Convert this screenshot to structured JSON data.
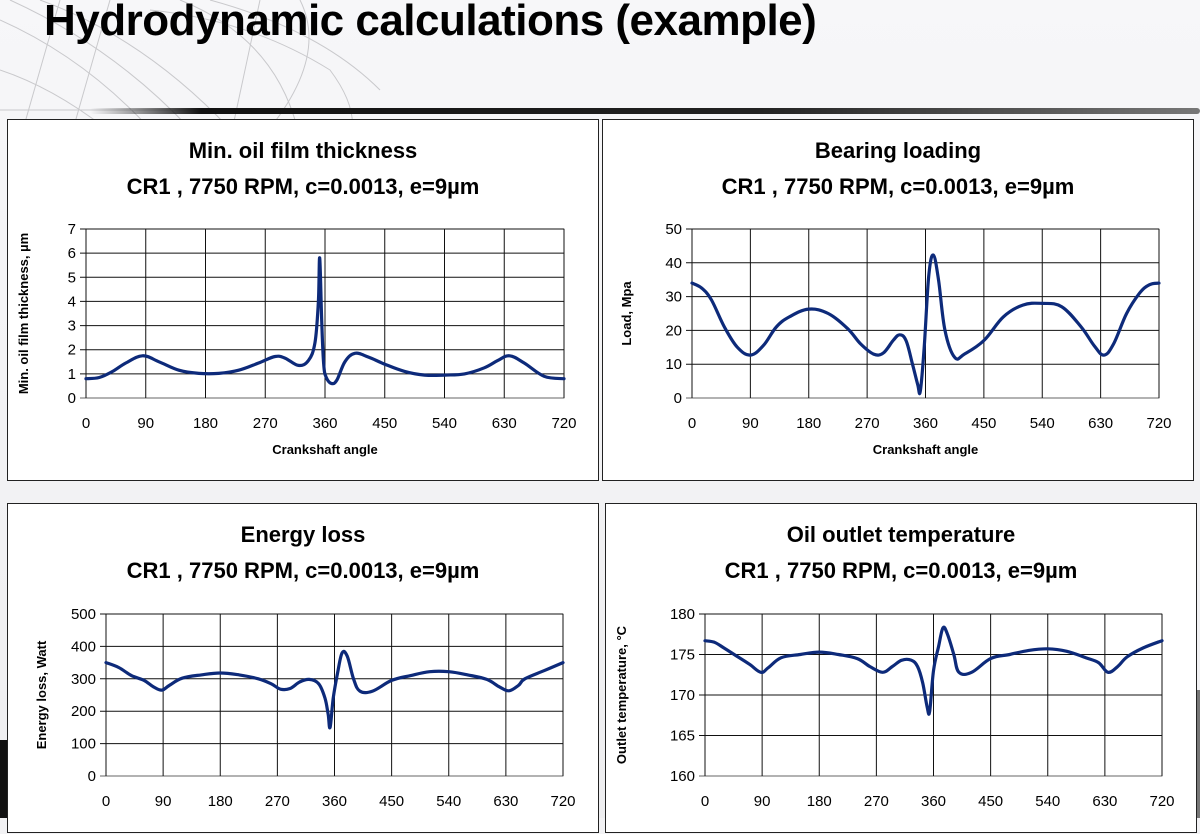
{
  "page": {
    "title": "Hydrodynamic calculations (example)"
  },
  "colors": {
    "series": "#0d2a7a",
    "grid": "#000000",
    "background": "#ffffff"
  },
  "chart_data": [
    {
      "type": "line",
      "title": "Min. oil film thickness",
      "subtitle": "CR1 , 7750 RPM, c=0.0013, e=9µm",
      "xlabel": "Crankshaft angle",
      "ylabel": "Min. oil film thickness, µm",
      "xlim": [
        0,
        720
      ],
      "ylim": [
        0,
        7
      ],
      "xticks": [
        0,
        90,
        180,
        270,
        360,
        450,
        540,
        630,
        720
      ],
      "yticks": [
        0,
        1,
        2,
        3,
        4,
        5,
        6,
        7
      ],
      "grid": true,
      "legend": "none",
      "series": [
        {
          "name": "Min. oil film thickness",
          "x": [
            0,
            20,
            40,
            60,
            85,
            110,
            140,
            170,
            200,
            230,
            260,
            285,
            300,
            320,
            335,
            345,
            350,
            352,
            355,
            358,
            362,
            370,
            378,
            390,
            405,
            425,
            450,
            480,
            510,
            540,
            570,
            600,
            620,
            638,
            660,
            690,
            720
          ],
          "y": [
            0.8,
            0.85,
            1.1,
            1.45,
            1.75,
            1.5,
            1.15,
            1.02,
            1.02,
            1.15,
            1.45,
            1.72,
            1.65,
            1.35,
            1.55,
            2.3,
            4.0,
            5.8,
            3.2,
            1.4,
            0.85,
            0.6,
            0.75,
            1.5,
            1.85,
            1.7,
            1.4,
            1.1,
            0.95,
            0.95,
            1.0,
            1.25,
            1.55,
            1.75,
            1.45,
            0.9,
            0.8
          ]
        }
      ]
    },
    {
      "type": "line",
      "title": "Bearing loading",
      "subtitle": "CR1 , 7750 RPM, c=0.0013, e=9µm",
      "xlabel": "Crankshaft angle",
      "ylabel": "Load, Mpa",
      "xlim": [
        0,
        720
      ],
      "ylim": [
        0,
        50
      ],
      "xticks": [
        0,
        90,
        180,
        270,
        360,
        450,
        540,
        630,
        720
      ],
      "yticks": [
        0,
        10,
        20,
        30,
        40,
        50
      ],
      "grid": true,
      "legend": "none",
      "series": [
        {
          "name": "Load",
          "x": [
            0,
            15,
            30,
            50,
            70,
            90,
            110,
            130,
            150,
            180,
            210,
            240,
            260,
            280,
            295,
            310,
            320,
            330,
            340,
            348,
            352,
            358,
            365,
            372,
            380,
            390,
            405,
            420,
            450,
            480,
            510,
            540,
            570,
            600,
            620,
            635,
            650,
            670,
            690,
            705,
            720
          ],
          "y": [
            34,
            32.5,
            29,
            21,
            15,
            12.7,
            15.5,
            21,
            24,
            26.3,
            25,
            20.5,
            16,
            13,
            13.3,
            17,
            18.7,
            17,
            10,
            4,
            2,
            15,
            36,
            42.3,
            35,
            20,
            12,
            13,
            17,
            24,
            27.5,
            28,
            27,
            21,
            15.5,
            12.7,
            16,
            25,
            31,
            33.5,
            34
          ]
        }
      ]
    },
    {
      "type": "line",
      "title": "Energy loss",
      "subtitle": "CR1 , 7750 RPM, c=0.0013, e=9µm",
      "xlabel": "",
      "ylabel": "Energy loss, Watt",
      "xlim": [
        0,
        720
      ],
      "ylim": [
        0,
        500
      ],
      "xticks": [
        0,
        90,
        180,
        270,
        360,
        450,
        540,
        630,
        720
      ],
      "yticks": [
        0,
        100,
        200,
        300,
        400,
        500
      ],
      "grid": true,
      "legend": "none",
      "series": [
        {
          "name": "Energy loss",
          "x": [
            0,
            20,
            40,
            60,
            75,
            88,
            100,
            120,
            150,
            180,
            210,
            240,
            260,
            275,
            290,
            305,
            320,
            335,
            345,
            350,
            353,
            358,
            365,
            372,
            380,
            390,
            400,
            420,
            450,
            480,
            510,
            540,
            570,
            600,
            620,
            635,
            650,
            660,
            690,
            720
          ],
          "y": [
            350,
            335,
            310,
            295,
            275,
            265,
            280,
            302,
            312,
            318,
            312,
            300,
            285,
            268,
            270,
            290,
            298,
            285,
            240,
            190,
            150,
            240,
            320,
            380,
            370,
            300,
            262,
            262,
            295,
            310,
            322,
            322,
            312,
            298,
            275,
            263,
            280,
            300,
            325,
            350
          ]
        }
      ]
    },
    {
      "type": "line",
      "title": "Oil outlet temperature",
      "subtitle": "CR1 , 7750 RPM, c=0.0013, e=9µm",
      "xlabel": "",
      "ylabel": "Outlet temperature, °C",
      "xlim": [
        0,
        720
      ],
      "ylim": [
        160,
        180
      ],
      "xticks": [
        0,
        90,
        180,
        270,
        360,
        450,
        540,
        630,
        720
      ],
      "yticks": [
        160,
        165,
        170,
        175,
        180
      ],
      "grid": true,
      "legend": "none",
      "series": [
        {
          "name": "Outlet temperature",
          "x": [
            0,
            15,
            30,
            50,
            70,
            88,
            100,
            120,
            150,
            180,
            210,
            240,
            260,
            280,
            295,
            310,
            325,
            335,
            343,
            350,
            354,
            360,
            368,
            375,
            382,
            392,
            400,
            420,
            450,
            480,
            510,
            540,
            570,
            600,
            620,
            635,
            650,
            665,
            690,
            720
          ],
          "y": [
            176.7,
            176.5,
            175.8,
            174.8,
            173.8,
            172.8,
            173.4,
            174.6,
            175.0,
            175.3,
            175.0,
            174.5,
            173.5,
            172.8,
            173.5,
            174.3,
            174.3,
            173.5,
            171.5,
            168.5,
            168.0,
            173.0,
            176.0,
            178.3,
            177.5,
            175.0,
            172.8,
            172.8,
            174.5,
            175.0,
            175.5,
            175.7,
            175.4,
            174.6,
            174.0,
            172.8,
            173.5,
            174.7,
            175.8,
            176.7
          ]
        }
      ]
    }
  ]
}
